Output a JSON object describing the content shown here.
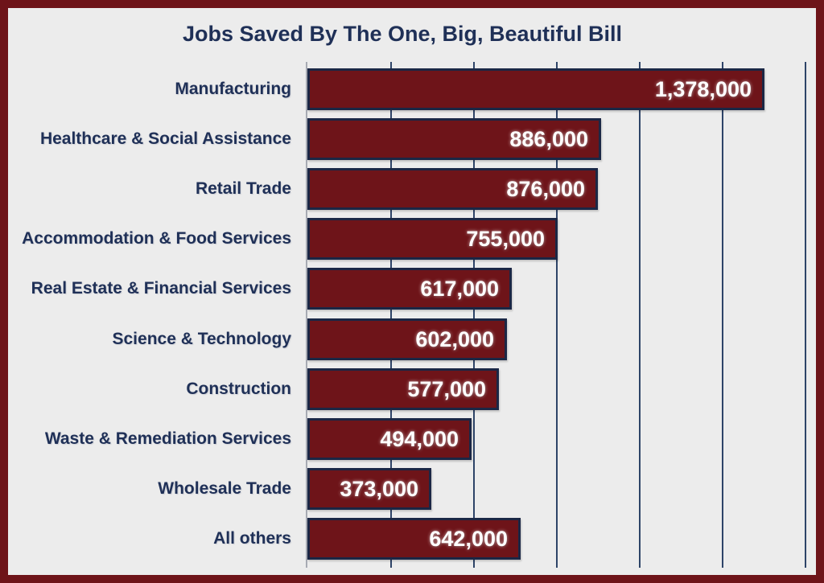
{
  "frame": {
    "background_color": "#ECECEC",
    "border_color": "#6E1419"
  },
  "title": "Jobs Saved By The One, Big, Beautiful Bill",
  "chart_data": {
    "type": "bar",
    "orientation": "horizontal",
    "title": "Jobs Saved By The One, Big, Beautiful Bill",
    "categories": [
      "Manufacturing",
      "Healthcare & Social Assistance",
      "Retail Trade",
      "Accommodation & Food Services",
      "Real Estate & Financial Services",
      "Science & Technology",
      "Construction",
      "Waste & Remediation Services",
      "Wholesale Trade",
      "All others"
    ],
    "values": [
      1378000,
      886000,
      876000,
      755000,
      617000,
      602000,
      577000,
      494000,
      373000,
      642000
    ],
    "value_labels": [
      "1,378,000",
      "886,000",
      "876,000",
      "755,000",
      "617,000",
      "602,000",
      "577,000",
      "494,000",
      "373,000",
      "642,000"
    ],
    "xlabel": "",
    "ylabel": "",
    "xlim": [
      0,
      1500000
    ],
    "gridlines": [
      250000,
      500000,
      750000,
      1000000,
      1250000,
      1500000
    ],
    "grid": true,
    "axis_tick_labels_shown": false,
    "legend": null,
    "value_label_position": "inside-end",
    "colors": {
      "bar_fill": "#6E1419",
      "bar_border": "#1B2745",
      "gridline": "#2E4468",
      "axis_line": "#A7AAB3",
      "category_text": "#1F3057",
      "title_text": "#1F3057",
      "value_text": "#FFFFFF",
      "background": "#ECECEC",
      "frame_border": "#6E1419"
    }
  }
}
